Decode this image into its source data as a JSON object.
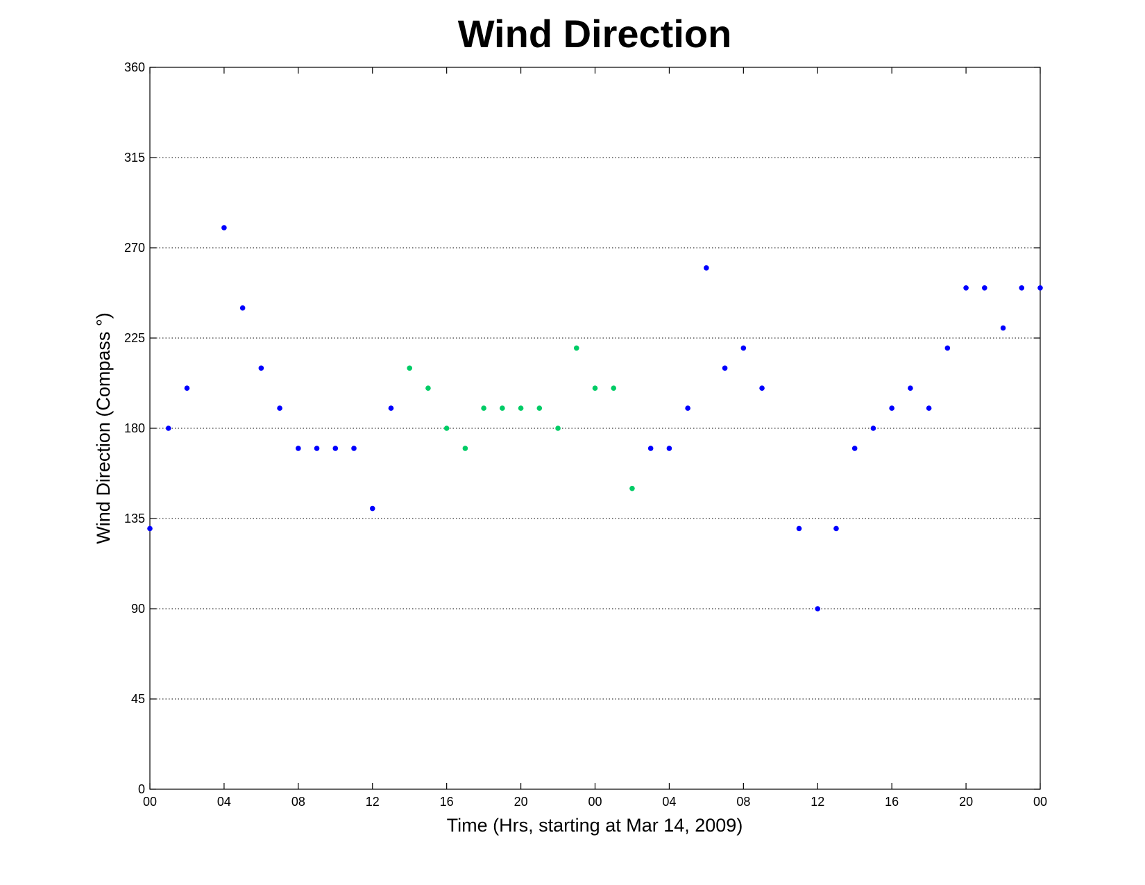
{
  "chart_data": {
    "type": "scatter",
    "title": "Wind Direction",
    "xlabel": "Time (Hrs, starting at Mar 14, 2009)",
    "ylabel": "Wind Direction (Compass  °)",
    "xlim": [
      0,
      48
    ],
    "ylim": [
      0,
      360
    ],
    "yticks": [
      0,
      45,
      90,
      135,
      180,
      225,
      270,
      315,
      360
    ],
    "xticks": [
      {
        "x": 0,
        "label": "00"
      },
      {
        "x": 4,
        "label": "04"
      },
      {
        "x": 8,
        "label": "08"
      },
      {
        "x": 12,
        "label": "12"
      },
      {
        "x": 16,
        "label": "16"
      },
      {
        "x": 20,
        "label": "20"
      },
      {
        "x": 24,
        "label": "00"
      },
      {
        "x": 28,
        "label": "04"
      },
      {
        "x": 32,
        "label": "08"
      },
      {
        "x": 36,
        "label": "12"
      },
      {
        "x": 40,
        "label": "16"
      },
      {
        "x": 44,
        "label": "20"
      },
      {
        "x": 48,
        "label": "00"
      }
    ],
    "grid": "horizontal dotted",
    "series": [
      {
        "color": "#0000ff",
        "points": [
          [
            0,
            130
          ],
          [
            1,
            180
          ],
          [
            2,
            200
          ],
          [
            4,
            280
          ],
          [
            5,
            240
          ],
          [
            6,
            210
          ],
          [
            7,
            190
          ],
          [
            8,
            170
          ],
          [
            9,
            170
          ],
          [
            10,
            170
          ],
          [
            11,
            170
          ],
          [
            12,
            140
          ],
          [
            13,
            190
          ],
          [
            27,
            170
          ],
          [
            28,
            170
          ],
          [
            29,
            190
          ],
          [
            30,
            260
          ],
          [
            31,
            210
          ],
          [
            32,
            220
          ],
          [
            33,
            200
          ],
          [
            35,
            130
          ],
          [
            36,
            90
          ],
          [
            37,
            130
          ],
          [
            38,
            170
          ],
          [
            39,
            180
          ],
          [
            40,
            190
          ],
          [
            41,
            200
          ],
          [
            42,
            190
          ],
          [
            43,
            220
          ],
          [
            44,
            250
          ],
          [
            45,
            250
          ],
          [
            46,
            230
          ],
          [
            47,
            250
          ],
          [
            48,
            250
          ]
        ]
      },
      {
        "color": "#00cc66",
        "points": [
          [
            14,
            210
          ],
          [
            15,
            200
          ],
          [
            16,
            180
          ],
          [
            17,
            170
          ],
          [
            18,
            190
          ],
          [
            19,
            190
          ],
          [
            20,
            190
          ],
          [
            21,
            190
          ],
          [
            22,
            180
          ],
          [
            23,
            220
          ],
          [
            24,
            200
          ],
          [
            25,
            200
          ],
          [
            26,
            150
          ]
        ]
      }
    ]
  }
}
